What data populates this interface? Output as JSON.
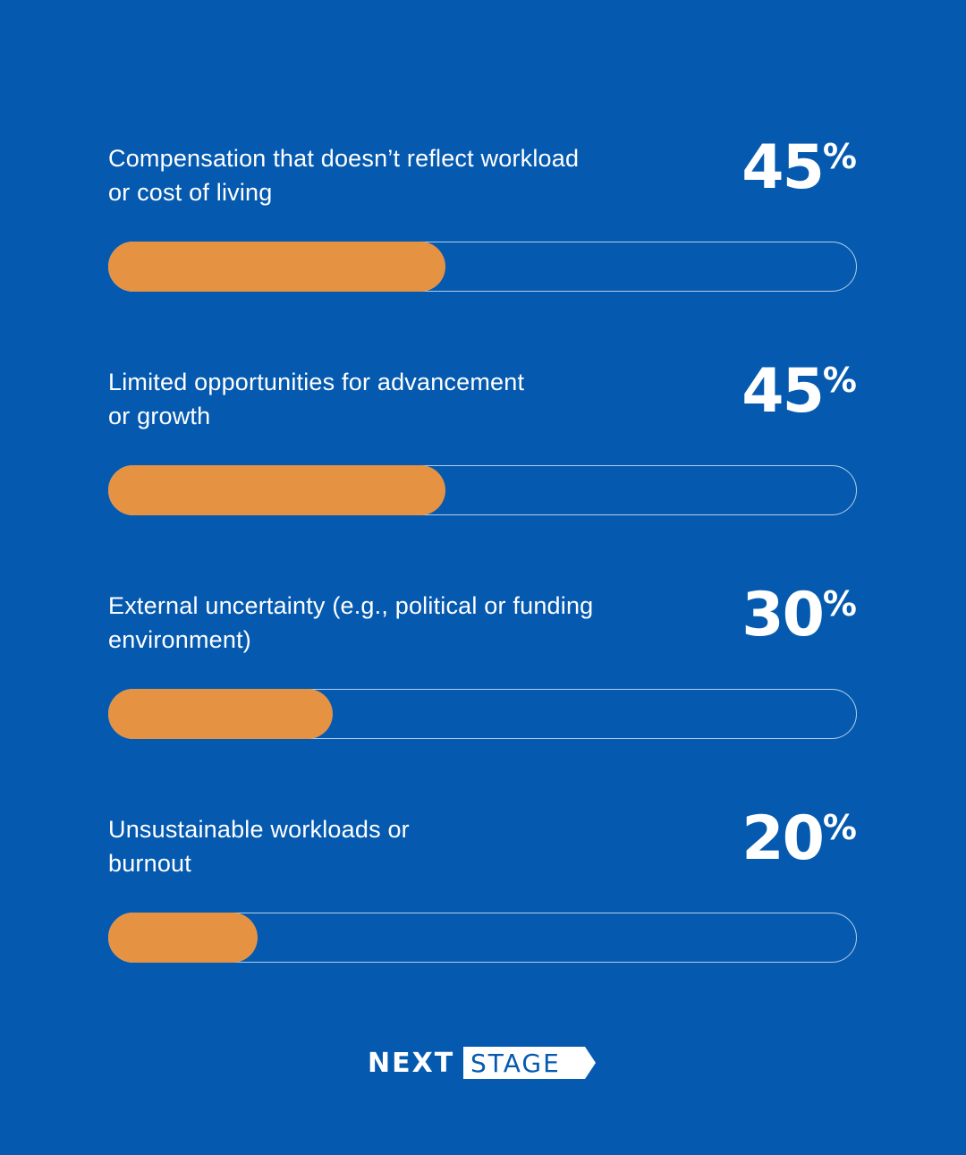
{
  "colors": {
    "background": "#055ab0",
    "bar_fill": "#e69243",
    "track_border": "#ffffff",
    "text": "#ffffff"
  },
  "chart_data": {
    "type": "bar",
    "categories": [
      "Compensation that doesn’t reflect workload or cost of living",
      "Limited opportunities for advancement or growth",
      "External uncertainty (e.g., political or funding environment)",
      "Unsustainable workloads or burnout"
    ],
    "values": [
      45,
      45,
      30,
      20
    ],
    "unit": "%",
    "ylim": [
      0,
      100
    ],
    "items": [
      {
        "label_line1": "Compensation that doesn’t reflect workload",
        "label_line2": "or cost of living",
        "value_text": "45",
        "value": 45
      },
      {
        "label_line1": "Limited opportunities for advancement",
        "label_line2": "or growth",
        "value_text": "45",
        "value": 45
      },
      {
        "label_line1": "External uncertainty (e.g., political or funding",
        "label_line2": "environment)",
        "value_text": "30",
        "value": 30
      },
      {
        "label_line1": "Unsustainable workloads or",
        "label_line2": "burnout",
        "value_text": "20",
        "value": 20
      }
    ]
  },
  "logo": {
    "word1": "NEXT",
    "word2": "STAGE"
  }
}
